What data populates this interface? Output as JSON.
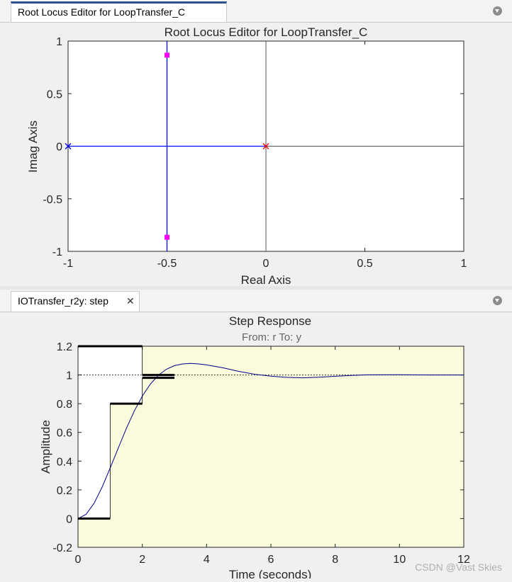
{
  "root_locus_panel": {
    "tab_label": "Root Locus Editor for LoopTransfer_C",
    "plot_title": "Root Locus Editor for LoopTransfer_C",
    "xlabel": "Real Axis",
    "ylabel": "Imag Axis"
  },
  "step_panel": {
    "tab_label": "IOTransfer_r2y: step",
    "close_glyph": "✕",
    "plot_title": "Step Response",
    "plot_subtitle": "From: r  To: y",
    "xlabel": "Time (seconds)",
    "ylabel": "Amplitude"
  },
  "watermark": "CSDN @Vast Skies",
  "colors": {
    "tab_accent": "#2c5191",
    "locus": "#0000ff",
    "pole_marker": "#0000ff",
    "origin_marker": "#ff0000",
    "closed_loop_pole": "#ff00ff",
    "response_line": "#00008b",
    "constraint_region": "#fafadc"
  },
  "chart_data": [
    {
      "type": "scatter",
      "title": "Root Locus Editor for LoopTransfer_C",
      "xlabel": "Real Axis",
      "ylabel": "Imag Axis",
      "xlim": [
        -1,
        1
      ],
      "ylim": [
        -1,
        1
      ],
      "xticks": [
        "-1",
        "-0.5",
        "0",
        "0.5",
        "1"
      ],
      "yticks": [
        "1",
        "0.5",
        "0",
        "-0.5",
        "-1"
      ],
      "grid": false,
      "series": [
        {
          "name": "open-loop poles",
          "marker": "x",
          "points": [
            [
              -1,
              0
            ],
            [
              0,
              0
            ]
          ]
        },
        {
          "name": "closed-loop poles",
          "marker": "square",
          "points": [
            [
              -0.5,
              0.866
            ],
            [
              -0.5,
              -0.866
            ]
          ]
        }
      ],
      "locus_segments": [
        [
          [
            -1,
            0
          ],
          [
            0,
            0
          ]
        ],
        [
          [
            -0.5,
            -1
          ],
          [
            -0.5,
            1
          ]
        ]
      ]
    },
    {
      "type": "line",
      "title": "Step Response",
      "subtitle": "From: r  To: y",
      "xlabel": "Time (seconds)",
      "ylabel": "Amplitude",
      "xlim": [
        0,
        12
      ],
      "ylim": [
        -0.2,
        1.2
      ],
      "xticks": [
        "0",
        "2",
        "4",
        "6",
        "8",
        "10",
        "12"
      ],
      "yticks": [
        "1.2",
        "1",
        "0.8",
        "0.6",
        "0.4",
        "0.2",
        "0",
        "-0.2"
      ],
      "grid": false,
      "reference_value": 1,
      "series": [
        {
          "name": "",
          "x": [
            0,
            0.25,
            0.5,
            0.75,
            1,
            1.25,
            1.5,
            1.75,
            2,
            2.25,
            2.5,
            2.75,
            3,
            3.25,
            3.5,
            3.75,
            4,
            4.5,
            5,
            5.5,
            6,
            6.5,
            7,
            7.5,
            8,
            8.5,
            9,
            10,
            11,
            12
          ],
          "y": [
            0,
            0.029,
            0.107,
            0.219,
            0.351,
            0.49,
            0.625,
            0.748,
            0.853,
            0.936,
            0.998,
            1.04,
            1.065,
            1.077,
            1.08,
            1.077,
            1.07,
            1.05,
            1.025,
            1.005,
            0.992,
            0.983,
            0.98,
            0.984,
            0.991,
            0.997,
            1.001,
            1.002,
            1.0,
            1.0
          ]
        }
      ],
      "constraint_bounds": {
        "upper": [
          [
            0,
            1.2
          ],
          [
            2,
            1.2
          ],
          [
            2,
            1.0
          ],
          [
            3,
            1.0
          ]
        ],
        "lower": [
          [
            0,
            0
          ],
          [
            1,
            0
          ],
          [
            1,
            0.8
          ],
          [
            2,
            0.8
          ],
          [
            2,
            0.98
          ],
          [
            3,
            0.98
          ]
        ]
      }
    }
  ]
}
